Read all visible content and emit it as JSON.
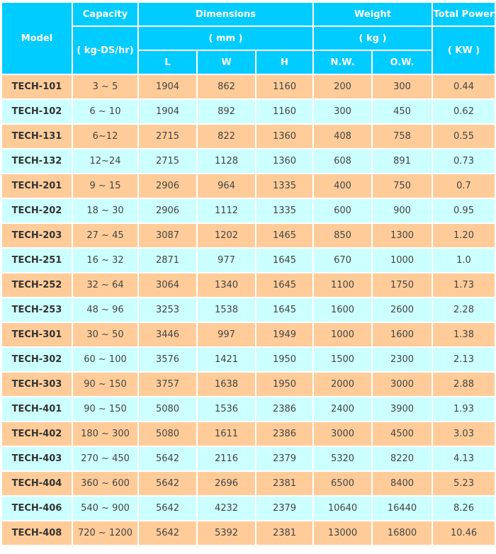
{
  "header": {
    "model": "Model",
    "capacity": "Capacity",
    "capacity_unit": "( kg-DS/hr)",
    "dimensions": "Dimensions",
    "dimensions_unit": "( mm )",
    "weight": "Weight",
    "weight_unit": "( kg )",
    "power": "Total Power",
    "power_unit": "( KW )",
    "L": "L",
    "W": "W",
    "H": "H",
    "NW": "N.W.",
    "OW": "O.W."
  },
  "colors": {
    "header": "#00CCFF",
    "row_odd": "#FFCC99",
    "row_even": "#CCFFFF"
  },
  "rows": [
    [
      "TECH-101",
      "3 ~ 5",
      "1904",
      "862",
      "1160",
      "200",
      "300",
      "0.44"
    ],
    [
      "TECH-102",
      "6 ~ 10",
      "1904",
      "892",
      "1160",
      "300",
      "450",
      "0.62"
    ],
    [
      "TECH-131",
      "6~12",
      "2715",
      "822",
      "1360",
      "408",
      "758",
      "0.55"
    ],
    [
      "TECH-132",
      "12~24",
      "2715",
      "1128",
      "1360",
      "608",
      "891",
      "0.73"
    ],
    [
      "TECH-201",
      "9 ~ 15",
      "2906",
      "964",
      "1335",
      "400",
      "750",
      "0.7"
    ],
    [
      "TECH-202",
      "18 ~ 30",
      "2906",
      "1112",
      "1335",
      "600",
      "900",
      "0.95"
    ],
    [
      "TECH-203",
      "27 ~ 45",
      "3087",
      "1202",
      "1465",
      "850",
      "1300",
      "1.20"
    ],
    [
      "TECH-251",
      "16 ~ 32",
      "2871",
      "977",
      "1645",
      "670",
      "1000",
      "1.0"
    ],
    [
      "TECH-252",
      "32 ~ 64",
      "3064",
      "1340",
      "1645",
      "1100",
      "1750",
      "1.73"
    ],
    [
      "TECH-253",
      "48 ~ 96",
      "3253",
      "1538",
      "1645",
      "1600",
      "2600",
      "2.28"
    ],
    [
      "TECH-301",
      "30 ~ 50",
      "3446",
      "997",
      "1949",
      "1000",
      "1600",
      "1.38"
    ],
    [
      "TECH-302",
      "60 ~ 100",
      "3576",
      "1421",
      "1950",
      "1500",
      "2300",
      "2.13"
    ],
    [
      "TECH-303",
      "90 ~ 150",
      "3757",
      "1638",
      "1950",
      "2000",
      "3000",
      "2.88"
    ],
    [
      "TECH-401",
      "90 ~ 150",
      "5080",
      "1536",
      "2386",
      "2400",
      "3900",
      "1.93"
    ],
    [
      "TECH-402",
      "180 ~ 300",
      "5080",
      "1611",
      "2386",
      "3000",
      "4500",
      "3.03"
    ],
    [
      "TECH-403",
      "270 ~ 450",
      "5642",
      "2116",
      "2379",
      "5320",
      "8220",
      "4.13"
    ],
    [
      "TECH-404",
      "360 ~ 600",
      "5642",
      "2696",
      "2381",
      "6500",
      "8400",
      "5.23"
    ],
    [
      "TECH-406",
      "540 ~ 900",
      "5642",
      "4232",
      "2379",
      "10640",
      "16440",
      "8.26"
    ],
    [
      "TECH-408",
      "720 ~ 1200",
      "5642",
      "5392",
      "2381",
      "13000",
      "16800",
      "10.46"
    ]
  ]
}
